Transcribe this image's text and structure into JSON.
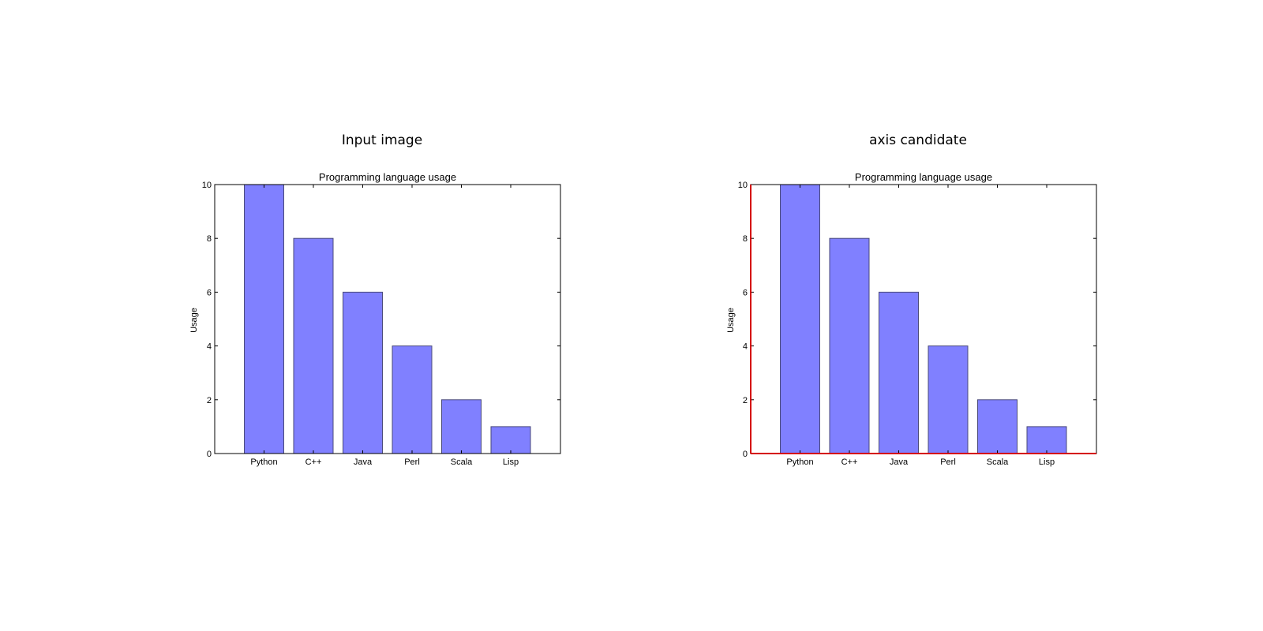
{
  "panels": [
    {
      "heading": "Input image",
      "highlight_axes": false
    },
    {
      "heading": "axis candidate",
      "highlight_axes": true
    }
  ],
  "colors": {
    "bar_fill": "#8080ff",
    "bar_edge": "#4a4a7a",
    "frame": "#000000",
    "axis_highlight": "#d40000"
  },
  "chart_data": [
    {
      "type": "bar",
      "title": "Programming language usage",
      "xlabel": "",
      "ylabel": "Usage",
      "categories": [
        "Python",
        "C++",
        "Java",
        "Perl",
        "Scala",
        "Lisp"
      ],
      "values": [
        10,
        8,
        6,
        4,
        2,
        1
      ],
      "ylim": [
        0,
        10
      ],
      "yticks": [
        "0",
        "2",
        "4",
        "6",
        "8",
        "10"
      ],
      "grid": false
    },
    {
      "type": "bar",
      "title": "Programming language usage",
      "xlabel": "",
      "ylabel": "Usage",
      "categories": [
        "Python",
        "C++",
        "Java",
        "Perl",
        "Scala",
        "Lisp"
      ],
      "values": [
        10,
        8,
        6,
        4,
        2,
        1
      ],
      "ylim": [
        0,
        10
      ],
      "yticks": [
        "0",
        "2",
        "4",
        "6",
        "8",
        "10"
      ],
      "grid": false
    }
  ]
}
